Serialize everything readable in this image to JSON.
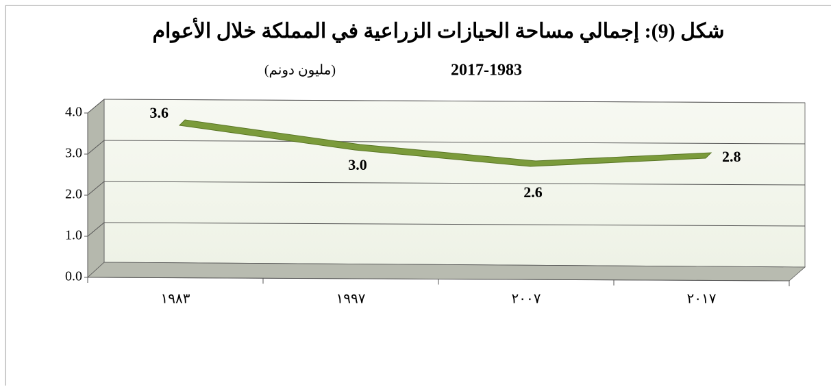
{
  "chart_data": {
    "type": "line",
    "title": "شكل (9): إجمالي مساحة الحيازات الزراعية في المملكة  خلال الأعوام",
    "subtitle": "2017-1983",
    "unit": "(مليون دونم)",
    "categories": [
      "١٩٨٣",
      "١٩٩٧",
      "٢٠٠٧",
      "٢٠١٧"
    ],
    "series": [
      {
        "name": null,
        "color": "#7b9b3b",
        "values": [
          3.6,
          3.0,
          2.6,
          2.8
        ],
        "value_labels": [
          "3.6",
          "3.0",
          "2.6",
          "2.8"
        ]
      }
    ],
    "ylim": [
      0,
      4
    ],
    "yticks": [
      {
        "value": 0,
        "label": "0.0"
      },
      {
        "value": 1,
        "label": "1.0"
      },
      {
        "value": 2,
        "label": "2.0"
      },
      {
        "value": 3,
        "label": "3.0"
      },
      {
        "value": 4,
        "label": "4.0"
      }
    ],
    "grid": true
  }
}
